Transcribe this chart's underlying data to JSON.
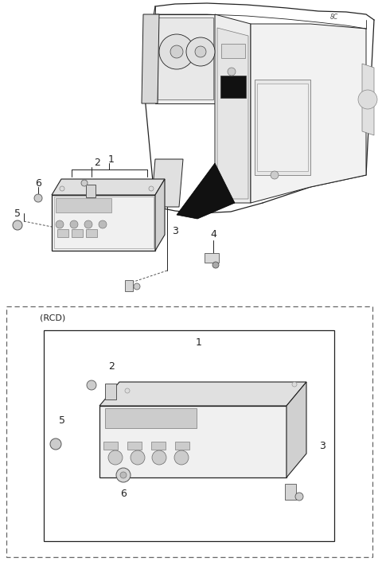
{
  "bg_color": "#ffffff",
  "fig_width": 4.8,
  "fig_height": 7.1,
  "dpi": 100,
  "line_color": "#222222",
  "gray_color": "#888888",
  "dash_color": "#666666"
}
